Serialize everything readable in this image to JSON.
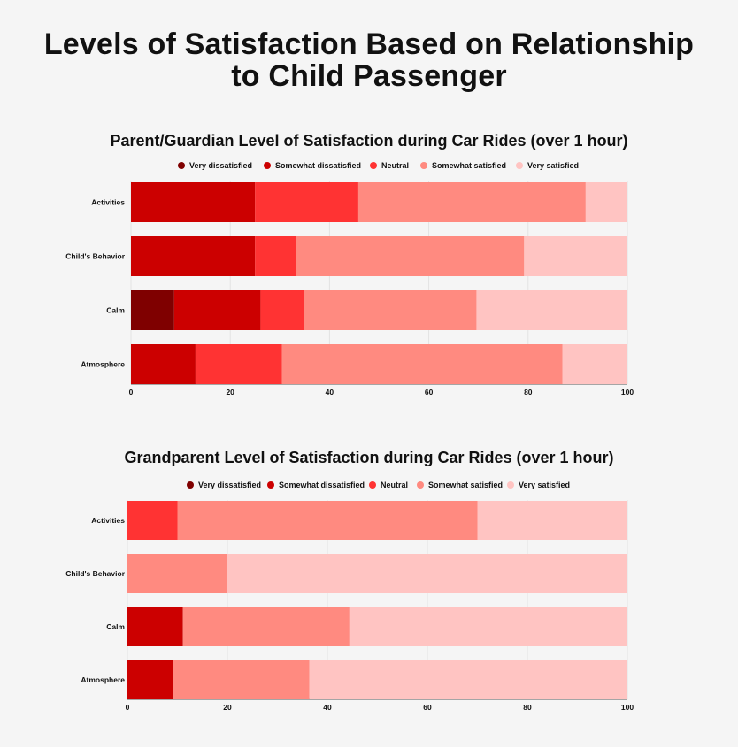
{
  "title_line1": "Levels of Satisfaction Based on Relationship",
  "title_line2": "to Child Passenger",
  "colors": {
    "very_dissatisfied": "#7f0000",
    "somewhat_dissatisfied": "#cc0000",
    "neutral": "#ff3333",
    "somewhat_satisfied": "#ff8a80",
    "very_satisfied": "#ffc4c2"
  },
  "chart_data": [
    {
      "type": "bar",
      "orientation": "horizontal",
      "stacked": true,
      "title": "Parent/Guardian Level of Satisfaction during Car Rides (over 1 hour)",
      "categories": [
        "Activities",
        "Child's Behavior",
        "Calm",
        "Atmosphere"
      ],
      "series": [
        {
          "name": "Very dissatisfied",
          "color_key": "very_dissatisfied",
          "values": [
            0,
            0,
            8.7,
            0
          ]
        },
        {
          "name": "Somewhat dissatisfied",
          "color_key": "somewhat_dissatisfied",
          "values": [
            25,
            25,
            17.4,
            13
          ]
        },
        {
          "name": "Neutral",
          "color_key": "neutral",
          "values": [
            20.8,
            8.3,
            8.7,
            17.4
          ]
        },
        {
          "name": "Somewhat satisfied",
          "color_key": "somewhat_satisfied",
          "values": [
            45.8,
            45.9,
            34.8,
            56.5
          ]
        },
        {
          "name": "Very satisfied",
          "color_key": "very_satisfied",
          "values": [
            8.4,
            20.8,
            30.4,
            13.1
          ]
        }
      ],
      "xlim": [
        0,
        100
      ],
      "xticks": [
        0,
        20,
        40,
        60,
        80,
        100
      ],
      "legend": "top-center"
    },
    {
      "type": "bar",
      "orientation": "horizontal",
      "stacked": true,
      "title": "Grandparent Level of Satisfaction during Car Rides (over 1 hour)",
      "categories": [
        "Activities",
        "Child's Behavior",
        "Calm",
        "Atmosphere"
      ],
      "series": [
        {
          "name": "Very dissatisfied",
          "color_key": "very_dissatisfied",
          "values": [
            0,
            0,
            0,
            0
          ]
        },
        {
          "name": "Somewhat dissatisfied",
          "color_key": "somewhat_dissatisfied",
          "values": [
            0,
            0,
            11.1,
            9.1
          ]
        },
        {
          "name": "Neutral",
          "color_key": "neutral",
          "values": [
            10,
            0,
            0,
            0
          ]
        },
        {
          "name": "Somewhat satisfied",
          "color_key": "somewhat_satisfied",
          "values": [
            60,
            20,
            33.3,
            27.3
          ]
        },
        {
          "name": "Very satisfied",
          "color_key": "very_satisfied",
          "values": [
            30,
            80,
            55.6,
            63.6
          ]
        }
      ],
      "xlim": [
        0,
        100
      ],
      "xticks": [
        0,
        20,
        40,
        60,
        80,
        100
      ],
      "legend": "top-center"
    }
  ]
}
